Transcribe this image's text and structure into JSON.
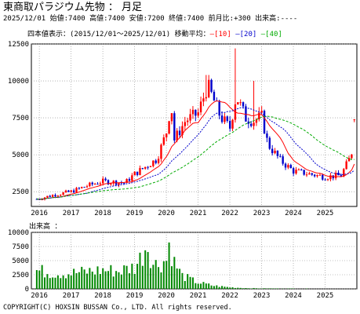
{
  "header": {
    "title": "東商取パラジウム先物 ： 月足",
    "info": "2025/12/01 始値:7400 高値:7400 安値:7200 終値:7400 前月比:+300 出来高:----"
  },
  "legend": {
    "label": "四本値表示：",
    "range": "(2015/12/01～2025/12/01)",
    "ma_label": "移動平均：",
    "ma": [
      {
        "text": "[10]",
        "color": "#ff0000"
      },
      {
        "text": "[20]",
        "color": "#0000cc"
      },
      {
        "text": "[40]",
        "color": "#00aa00"
      }
    ]
  },
  "volume_title": "出来高 ：",
  "copyright": "COPYRIGHT(C) HOXSIN BUSSAN Co., LTD. All rights reserved.",
  "colors": {
    "up": "#ff0000",
    "down": "#0000cc",
    "volume": "#008800",
    "grid": "#888888"
  },
  "chart_data": [
    {
      "type": "candlestick",
      "title": "東商取パラジウム先物 月足",
      "ylim": [
        1500,
        12500
      ],
      "yticks": [
        2500,
        5000,
        7500,
        10000,
        12500
      ],
      "x_years": [
        "2016",
        "2017",
        "2018",
        "2019",
        "2020",
        "2021",
        "2022",
        "2023",
        "2024",
        "2025"
      ],
      "grid": true,
      "anchors": [
        [
          2015.92,
          2000
        ],
        [
          2016.5,
          2300
        ],
        [
          2017.0,
          2500
        ],
        [
          2017.5,
          2900
        ],
        [
          2018.0,
          3200
        ],
        [
          2018.7,
          3100
        ],
        [
          2019.0,
          3700
        ],
        [
          2019.7,
          4700
        ],
        [
          2020.0,
          6500
        ],
        [
          2020.15,
          8500
        ],
        [
          2020.25,
          6000
        ],
        [
          2020.6,
          7300
        ],
        [
          2021.0,
          7800
        ],
        [
          2021.3,
          9700
        ],
        [
          2021.7,
          7600
        ],
        [
          2022.0,
          6800
        ],
        [
          2022.2,
          9000
        ],
        [
          2022.5,
          7500
        ],
        [
          2022.75,
          7300
        ],
        [
          2023.0,
          7600
        ],
        [
          2023.2,
          5700
        ],
        [
          2023.6,
          4600
        ],
        [
          2024.0,
          3900
        ],
        [
          2024.5,
          3700
        ],
        [
          2025.0,
          3500
        ],
        [
          2025.5,
          3600
        ],
        [
          2025.83,
          5000
        ],
        [
          2025.92,
          7400
        ]
      ],
      "spikes": [
        {
          "x": 2022.2,
          "high": 12200
        },
        {
          "x": 2021.3,
          "high": 10400
        },
        {
          "x": 2022.75,
          "high": 10000
        }
      ],
      "moving_averages": [
        {
          "period": 10,
          "color": "#ff0000"
        },
        {
          "period": 20,
          "color": "#0000cc"
        },
        {
          "period": 40,
          "color": "#00aa00"
        }
      ],
      "last": {
        "date": "2025/12/01",
        "open": 7400,
        "high": 7400,
        "low": 7200,
        "close": 7400
      }
    },
    {
      "type": "bar",
      "title": "出来高",
      "ylim": [
        0,
        10000
      ],
      "yticks": [
        0,
        2500,
        5000,
        7500,
        10000
      ],
      "anchors": [
        [
          2015.92,
          3500
        ],
        [
          2016.5,
          3000
        ],
        [
          2017.0,
          3000
        ],
        [
          2017.5,
          3300
        ],
        [
          2018.0,
          3600
        ],
        [
          2018.5,
          3400
        ],
        [
          2019.0,
          4200
        ],
        [
          2019.2,
          6000
        ],
        [
          2019.4,
          9000
        ],
        [
          2019.6,
          4500
        ],
        [
          2020.0,
          5500
        ],
        [
          2020.1,
          9000
        ],
        [
          2020.25,
          5000
        ],
        [
          2020.5,
          2500
        ],
        [
          2021.0,
          1200
        ],
        [
          2021.5,
          600
        ],
        [
          2022.0,
          300
        ],
        [
          2022.5,
          150
        ],
        [
          2023.0,
          80
        ],
        [
          2025.92,
          0
        ]
      ]
    }
  ]
}
